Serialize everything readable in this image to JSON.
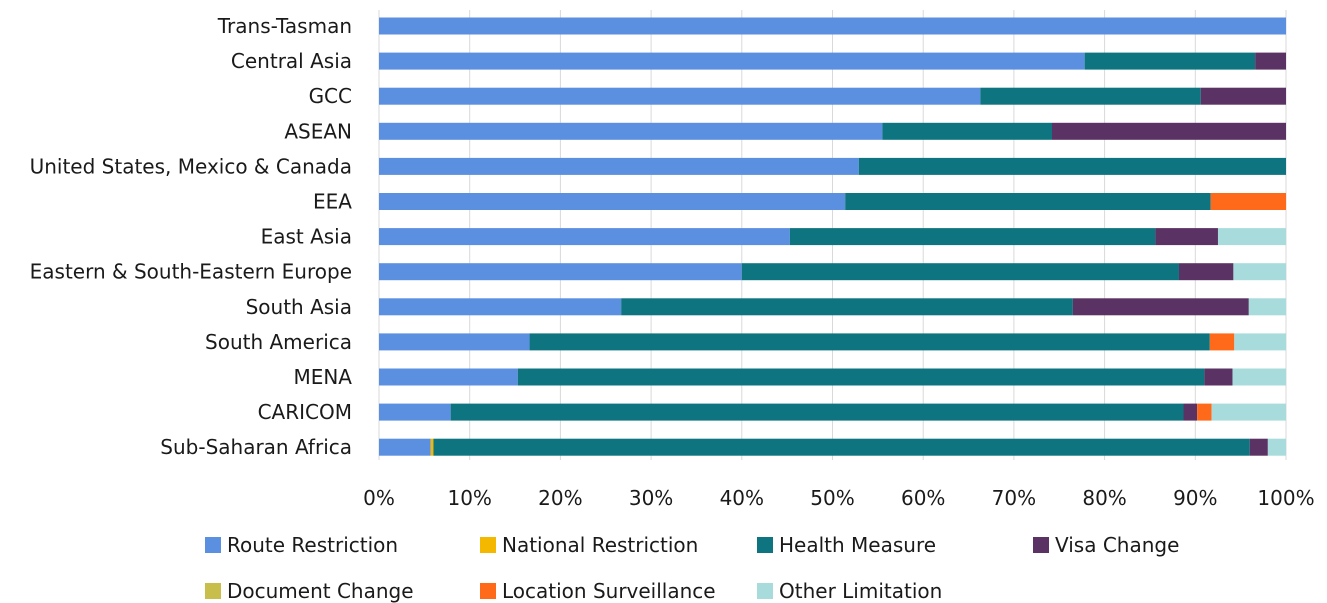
{
  "chart_data": {
    "type": "bar",
    "orientation": "horizontal",
    "stacked": "percent",
    "title": "",
    "xlabel": "",
    "ylabel": "",
    "xlim": [
      0,
      100
    ],
    "x_ticks": [
      "0%",
      "10%",
      "20%",
      "30%",
      "40%",
      "50%",
      "60%",
      "70%",
      "80%",
      "90%",
      "100%"
    ],
    "grid": true,
    "legend_position": "bottom",
    "categories": [
      "Trans-Tasman",
      "Central Asia",
      "GCC",
      "ASEAN",
      "United States, Mexico & Canada",
      "EEA",
      "East Asia",
      "Eastern & South-Eastern Europe",
      "South Asia",
      "South America",
      "MENA",
      "CARICOM",
      "Sub-Saharan Africa"
    ],
    "series": [
      {
        "name": "Route Restriction",
        "color": "#5b8fe0",
        "values": [
          100,
          77.8,
          66.3,
          55.5,
          52.9,
          51.4,
          45.3,
          40.0,
          26.7,
          16.6,
          15.3,
          7.9,
          5.7
        ]
      },
      {
        "name": "National Restriction",
        "color": "#f5b800",
        "values": [
          0,
          0,
          0,
          0,
          0,
          0,
          0,
          0,
          0,
          0,
          0,
          0,
          0.3
        ]
      },
      {
        "name": "Health Measure",
        "color": "#0e7580",
        "values": [
          0,
          18.8,
          24.3,
          18.7,
          47.1,
          40.3,
          40.3,
          48.2,
          49.8,
          75.0,
          75.7,
          80.8,
          90.0
        ]
      },
      {
        "name": "Visa Change",
        "color": "#5b3264",
        "values": [
          0,
          3.4,
          9.4,
          25.8,
          0,
          0,
          6.9,
          6.0,
          19.4,
          0,
          3.1,
          1.5,
          2.0
        ]
      },
      {
        "name": "Document Change",
        "color": "#c8be4b",
        "values": [
          0,
          0,
          0,
          0,
          0,
          0,
          0,
          0,
          0,
          0,
          0,
          0,
          0
        ]
      },
      {
        "name": "Location Surveillance",
        "color": "#ff6a1a",
        "values": [
          0,
          0,
          0,
          0,
          0,
          8.3,
          0,
          0,
          0,
          2.7,
          0,
          1.6,
          0
        ]
      },
      {
        "name": "Other Limitation",
        "color": "#a8dcdc",
        "values": [
          0,
          0,
          0,
          0,
          0,
          0,
          7.5,
          5.8,
          4.1,
          5.7,
          5.9,
          8.2,
          2.0
        ]
      }
    ]
  }
}
